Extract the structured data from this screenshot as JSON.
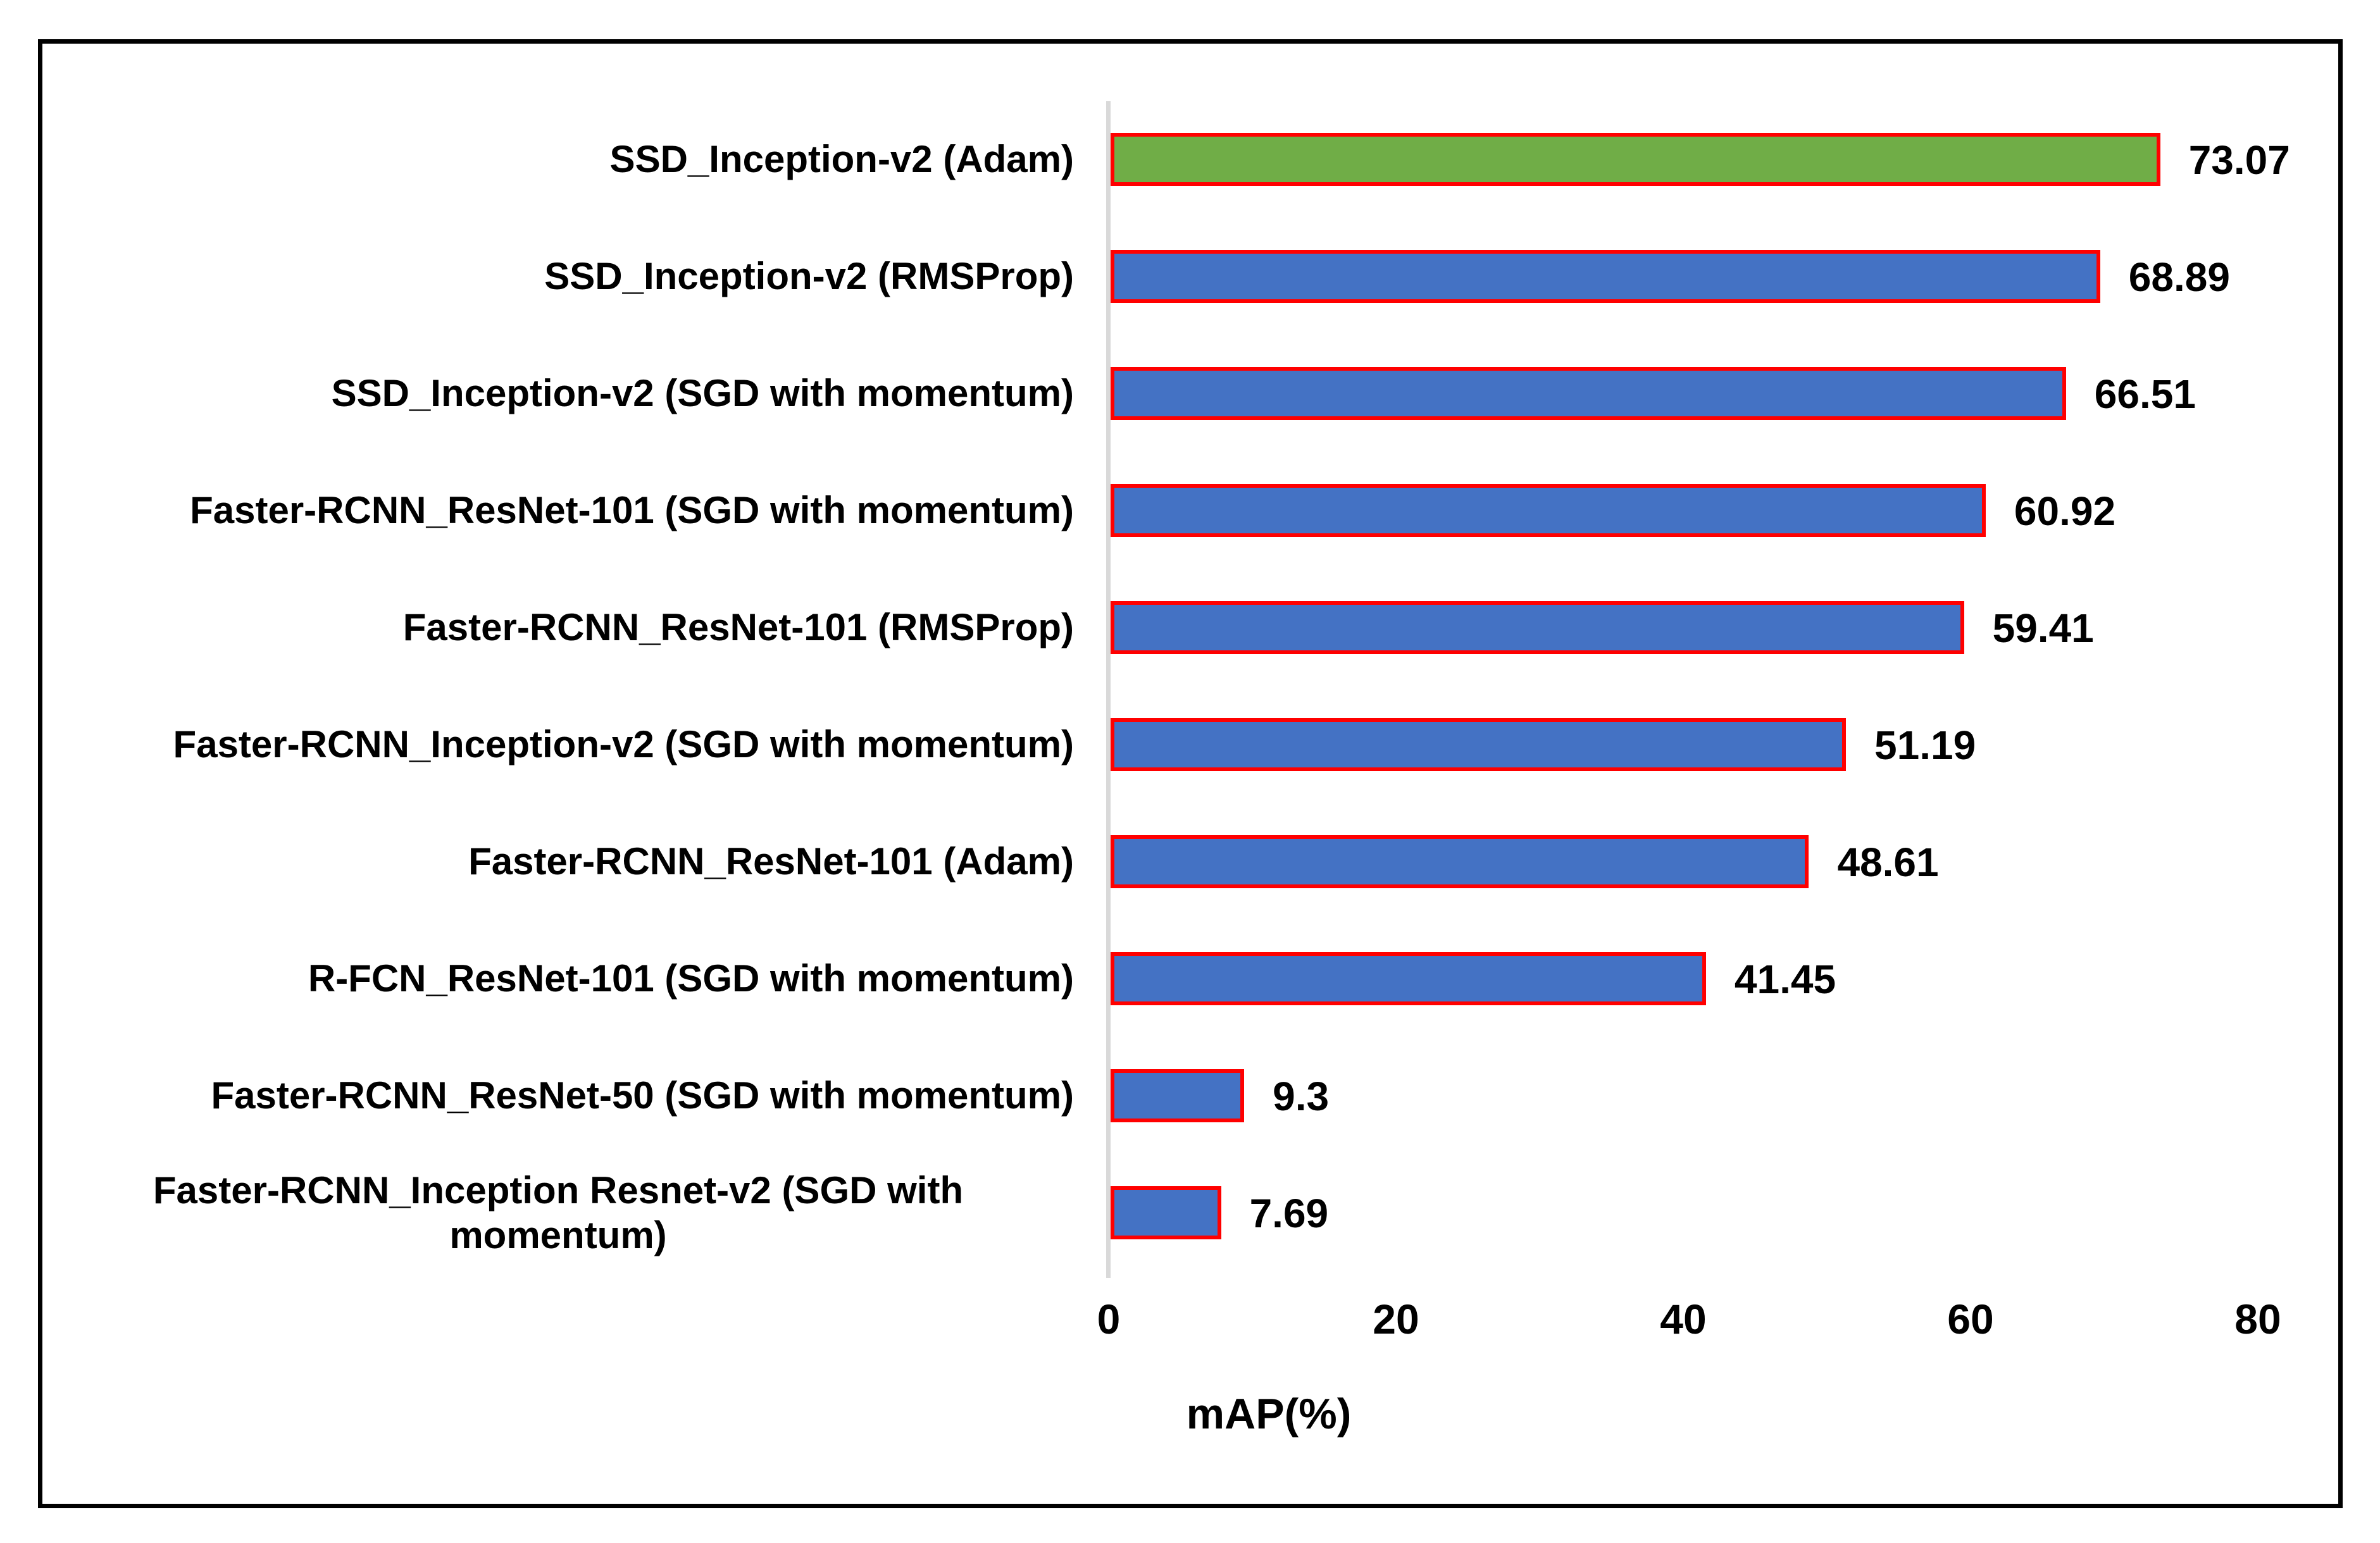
{
  "chart_data": {
    "type": "bar",
    "orientation": "horizontal",
    "title": "",
    "xlabel": "mAP(%)",
    "ylabel": "",
    "xlim": [
      0,
      80
    ],
    "x_ticks": [
      "0",
      "20",
      "40",
      "60",
      "80"
    ],
    "grid": false,
    "legend": false,
    "categories": [
      "SSD_Inception-v2 (Adam)",
      "SSD_Inception-v2 (RMSProp)",
      "SSD_Inception-v2 (SGD with momentum)",
      "Faster-RCNN_ResNet-101 (SGD with momentum)",
      "Faster-RCNN_ResNet-101 (RMSProp)",
      "Faster-RCNN_Inception-v2 (SGD with momentum)",
      "Faster-RCNN_ResNet-101 (Adam)",
      "R-FCN_ResNet-101 (SGD with momentum)",
      "Faster-RCNN_ResNet-50 (SGD with momentum)",
      "Faster-RCNN_Inception Resnet-v2 (SGD with\nmomentum)"
    ],
    "values": [
      73.07,
      68.89,
      66.51,
      60.92,
      59.41,
      51.19,
      48.61,
      41.45,
      9.3,
      7.69
    ],
    "value_labels": [
      "73.07",
      "68.89",
      "66.51",
      "60.92",
      "59.41",
      "51.19",
      "48.61",
      "41.45",
      "9.3",
      "7.69"
    ],
    "colors": {
      "highlight_bar": "#70AD47",
      "default_bar": "#4472C4",
      "bar_border": "#FF0000",
      "axis_line": "#D9D9D9",
      "text": "#000000",
      "frame_border": "#000000"
    },
    "highlight_index": 0
  }
}
